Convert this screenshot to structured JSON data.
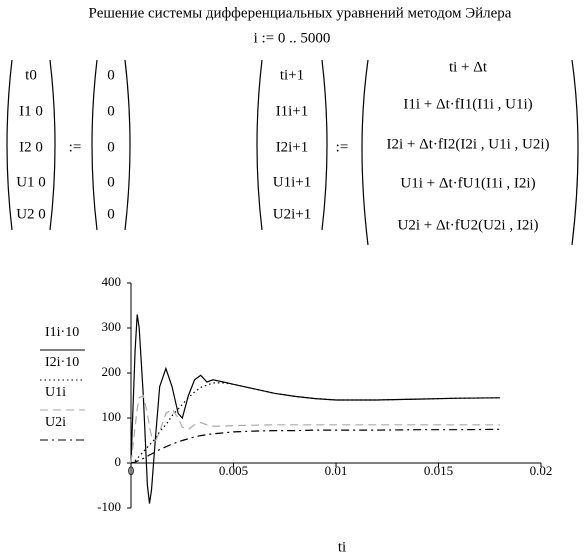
{
  "header": {
    "title": "Решение системы дифференциальных уравнений методом Эйлера",
    "range": "i := 0 .. 5000"
  },
  "init": {
    "vars": [
      "t0",
      "I1 0",
      "I2 0",
      "U1 0",
      "U2 0"
    ],
    "assign": ":=",
    "values": [
      0,
      0,
      0,
      0,
      0
    ]
  },
  "update": {
    "vars": [
      "ti+1",
      "I1i+1",
      "I2i+1",
      "U1i+1",
      "U2i+1"
    ],
    "assign": ":=",
    "exprs": [
      "ti + Δt",
      "I1i + Δt·fI1(I1i , U1i)",
      "I2i + Δt·fI2(I2i , U1i , U2i)",
      "U1i + Δt·fU1(I1i , I2i)",
      "U2i + Δt·fU2(U2i , I2i)"
    ]
  },
  "chart_data": {
    "type": "line",
    "x_label": "ti",
    "x": [
      0,
      0.0002,
      0.0003,
      0.0004,
      0.0006,
      0.0008,
      0.0009,
      0.001,
      0.0012,
      0.0014,
      0.0017,
      0.002,
      0.0023,
      0.0025,
      0.0028,
      0.0031,
      0.0034,
      0.0037,
      0.004,
      0.0045,
      0.005,
      0.006,
      0.007,
      0.008,
      0.009,
      0.01,
      0.012,
      0.014,
      0.016,
      0.018
    ],
    "series": [
      {
        "name": "I1i·10",
        "color": "#000000",
        "dash": "solid",
        "values": [
          0,
          250,
          330,
          300,
          150,
          -50,
          -90,
          -60,
          60,
          170,
          210,
          170,
          110,
          100,
          150,
          185,
          195,
          180,
          185,
          180,
          175,
          165,
          155,
          148,
          143,
          140,
          140,
          142,
          144,
          145
        ]
      },
      {
        "name": "I2i·10",
        "color": "#000000",
        "dash": "dotted",
        "values": [
          0,
          5,
          10,
          15,
          25,
          35,
          40,
          45,
          55,
          70,
          85,
          105,
          120,
          130,
          145,
          158,
          168,
          173,
          178,
          178,
          175,
          165,
          155,
          148,
          143,
          140,
          140,
          142,
          144,
          145
        ]
      },
      {
        "name": "U1i",
        "color": "#aaaaaa",
        "dash": "dashed",
        "values": [
          0,
          80,
          120,
          145,
          150,
          110,
          80,
          60,
          50,
          70,
          110,
          120,
          100,
          80,
          75,
          85,
          90,
          85,
          82,
          82,
          83,
          84,
          85,
          85,
          85,
          85,
          85,
          85,
          85,
          85
        ]
      },
      {
        "name": "U2i",
        "color": "#000000",
        "dash": "dashdot",
        "values": [
          0,
          2,
          4,
          6,
          10,
          15,
          18,
          20,
          25,
          30,
          36,
          42,
          47,
          50,
          54,
          58,
          61,
          63,
          65,
          67,
          69,
          71,
          72,
          72,
          73,
          73,
          73,
          74,
          74,
          75
        ]
      }
    ],
    "xlim": [
      -0.0002,
      0.02
    ],
    "ylim": [
      -100,
      400
    ],
    "xticks": [
      0,
      0.005,
      0.01,
      0.015,
      0.02
    ],
    "yticks": [
      -100,
      0,
      100,
      200,
      300,
      400
    ]
  }
}
